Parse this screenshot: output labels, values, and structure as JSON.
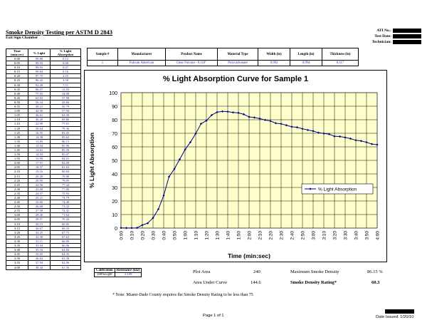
{
  "header": {
    "title": "Smoke Density Testing per ASTM D 2843",
    "subtitle": "Exit Sign Chamber",
    "ati_label": "ATI No.:",
    "date_label": "Test Date:",
    "tech_label": "Technician:"
  },
  "data_table": {
    "col_time": "Time",
    "col_time_unit": "(min:sec)",
    "col_light": "% Light",
    "col_absorp_a": "% Light",
    "col_absorp_b": "Absorption",
    "rows": [
      [
        "0:00",
        "99.88",
        "0.12"
      ],
      [
        "0:05",
        "99.92",
        "0.08"
      ],
      [
        "0:10",
        "99.93",
        "0.07"
      ],
      [
        "0:15",
        "99.84",
        "0.16"
      ],
      [
        "0:20",
        "97.75",
        "2.25"
      ],
      [
        "0:25",
        "96.42",
        "3.58"
      ],
      [
        "0:30",
        "92.49",
        "7.51"
      ],
      [
        "0:35",
        "86.07",
        "13.93"
      ],
      [
        "0:40",
        "75.92",
        "24.08"
      ],
      [
        "0:45",
        "62.02",
        "37.98"
      ],
      [
        "0:50",
        "56.34",
        "43.66"
      ],
      [
        "0:55",
        "49.21",
        "50.79"
      ],
      [
        "1:00",
        "42.06",
        "57.94"
      ],
      [
        "1:05",
        "36.61",
        "63.39"
      ],
      [
        "1:10",
        "30.20",
        "69.80"
      ],
      [
        "1:15",
        "22.99",
        "77.01"
      ],
      [
        "1:20",
        "20.64",
        "79.36"
      ],
      [
        "1:25",
        "16.55",
        "83.45"
      ],
      [
        "1:30",
        "14.38",
        "85.62"
      ],
      [
        "1:35",
        "13.85",
        "86.15"
      ],
      [
        "1:40",
        "14.04",
        "85.96"
      ],
      [
        "1:45",
        "14.61",
        "85.39"
      ],
      [
        "1:50",
        "14.93",
        "85.07"
      ],
      [
        "1:55",
        "15.99",
        "84.01"
      ],
      [
        "2:00",
        "17.91",
        "82.09"
      ],
      [
        "2:05",
        "18.37",
        "81.63"
      ],
      [
        "2:10",
        "19.16",
        "80.84"
      ],
      [
        "2:15",
        "20.20",
        "79.80"
      ],
      [
        "2:20",
        "20.95",
        "79.05"
      ],
      [
        "2:25",
        "22.56",
        "77.44"
      ],
      [
        "2:30",
        "23.00",
        "77.00"
      ],
      [
        "2:35",
        "24.07",
        "75.93"
      ],
      [
        "2:40",
        "25.21",
        "74.79"
      ],
      [
        "2:45",
        "25.60",
        "74.40"
      ],
      [
        "2:50",
        "26.68",
        "73.32"
      ],
      [
        "2:55",
        "27.59",
        "72.41"
      ],
      [
        "3:00",
        "28.36",
        "71.64"
      ],
      [
        "3:05",
        "29.57",
        "70.43"
      ],
      [
        "3:10",
        "30.15",
        "69.85"
      ],
      [
        "3:15",
        "30.67",
        "69.33"
      ],
      [
        "3:20",
        "32.25",
        "67.75"
      ],
      [
        "3:25",
        "32.38",
        "67.62"
      ],
      [
        "3:30",
        "33.11",
        "66.89"
      ],
      [
        "3:35",
        "33.94",
        "66.06"
      ],
      [
        "3:40",
        "35.16",
        "64.84"
      ],
      [
        "3:45",
        "35.65",
        "64.35"
      ],
      [
        "3:50",
        "36.62",
        "63.38"
      ],
      [
        "3:55",
        "37.94",
        "62.06"
      ],
      [
        "4:00",
        "38.44",
        "61.56"
      ]
    ]
  },
  "sample_table": {
    "headers": [
      "Sample #",
      "Manufacturer",
      "Product Name",
      "Material Type",
      "Width (in)",
      "Length (in)",
      "Thickness (in)"
    ],
    "row": [
      "1",
      "Fulcum American",
      "Clear Fulcum - 0.118\"",
      "Polycarbonate",
      "0.992",
      "0.994",
      "0.117"
    ]
  },
  "calibration": {
    "col1": "Calibration",
    "col2": "Resistance (kΩ)",
    "label": "100%Light",
    "value": "3.149"
  },
  "summary": {
    "plot_area_label": "Plot Area",
    "plot_area_value": "240",
    "auc_label": "Area Under Curve",
    "auc_value": "144.6",
    "max_label": "Maximum Smoke Density",
    "max_value": "86.15 %",
    "rating_label": "Smoke Density Rating*",
    "rating_value": "60.3"
  },
  "note": "* Note:  Miami-Dade County requires the Smoke Density Rating to be less than 75",
  "footer": {
    "page": "Page 1 of 1",
    "date_issued": "Date Issued: 1/20/10"
  },
  "chart_data": {
    "type": "line",
    "title": "% Light Absorption Curve for Sample 1",
    "xlabel": "Time (min:sec)",
    "ylabel": "% Light Absorption",
    "ylim": [
      0,
      100
    ],
    "yticks": [
      0,
      10,
      20,
      30,
      40,
      50,
      60,
      70,
      80,
      90,
      100
    ],
    "grid": true,
    "legend_position": "right",
    "plot_background": "#ffffcc",
    "line_color": "#000080",
    "x": [
      "0:00",
      "0:05",
      "0:10",
      "0:15",
      "0:20",
      "0:25",
      "0:30",
      "0:35",
      "0:40",
      "0:45",
      "0:50",
      "0:55",
      "1:00",
      "1:05",
      "1:10",
      "1:15",
      "1:20",
      "1:25",
      "1:30",
      "1:35",
      "1:40",
      "1:45",
      "1:50",
      "1:55",
      "2:00",
      "2:05",
      "2:10",
      "2:15",
      "2:20",
      "2:25",
      "2:30",
      "2:35",
      "2:40",
      "2:45",
      "2:50",
      "2:55",
      "3:00",
      "3:05",
      "3:10",
      "3:15",
      "3:20",
      "3:25",
      "3:30",
      "3:35",
      "3:40",
      "3:45",
      "3:50",
      "3:55",
      "4:00"
    ],
    "x_tick_labels": [
      "0:00",
      "0:10",
      "0:20",
      "0:30",
      "0:40",
      "0:50",
      "1:00",
      "1:10",
      "1:20",
      "1:30",
      "1:40",
      "1:50",
      "2:00",
      "2:10",
      "2:20",
      "2:30",
      "2:40",
      "2:50",
      "3:00",
      "3:10",
      "3:20",
      "3:30",
      "3:40",
      "3:50",
      "4:00"
    ],
    "series": [
      {
        "name": "% Light Absorption",
        "values": [
          0.12,
          0.08,
          0.07,
          0.16,
          2.25,
          3.58,
          7.51,
          13.93,
          24.08,
          37.98,
          43.66,
          50.79,
          57.94,
          63.39,
          69.8,
          77.01,
          79.36,
          83.45,
          85.62,
          86.15,
          85.96,
          85.39,
          85.07,
          84.01,
          82.09,
          81.63,
          80.84,
          79.8,
          79.05,
          77.44,
          77.0,
          75.93,
          74.79,
          74.4,
          73.32,
          72.41,
          71.64,
          70.43,
          69.85,
          69.33,
          67.75,
          67.62,
          66.89,
          66.06,
          64.84,
          64.35,
          63.38,
          62.06,
          61.56
        ]
      }
    ]
  }
}
